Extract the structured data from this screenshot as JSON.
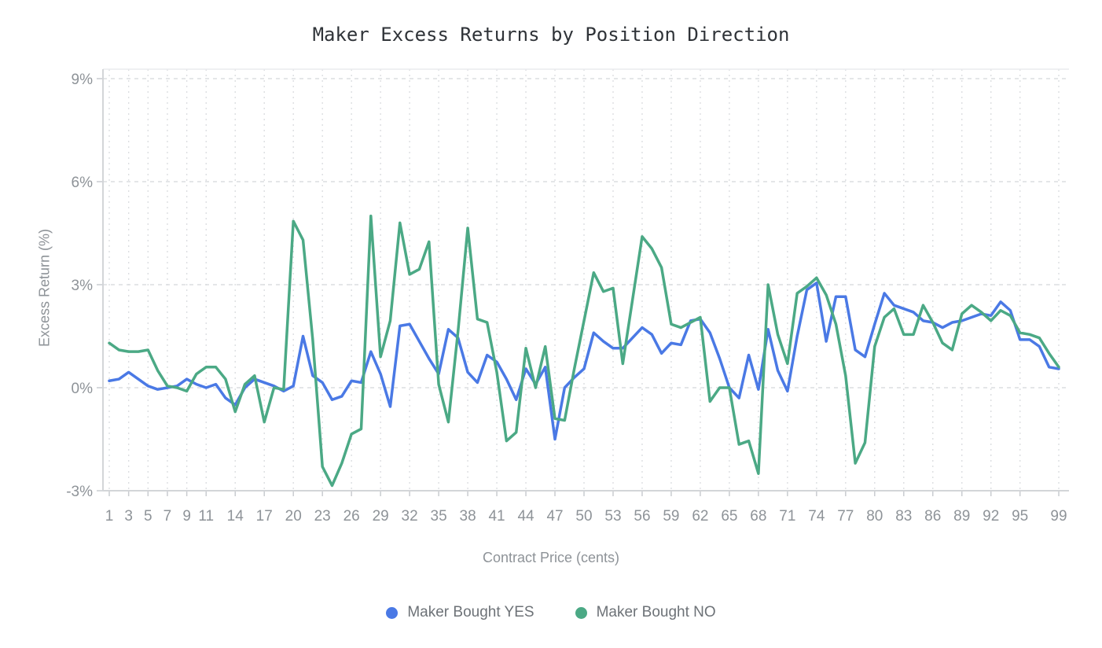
{
  "chart_data": {
    "type": "line",
    "title": "Maker Excess Returns by Position Direction",
    "xlabel": "Contract Price (cents)",
    "ylabel": "Excess Return (%)",
    "xlim": [
      1,
      99
    ],
    "ylim": [
      -3,
      9
    ],
    "grid": true,
    "legend_position": "bottom",
    "x_ticks": [
      1,
      3,
      5,
      7,
      9,
      11,
      14,
      17,
      20,
      23,
      26,
      29,
      32,
      35,
      38,
      41,
      44,
      47,
      50,
      53,
      56,
      59,
      62,
      65,
      68,
      71,
      74,
      77,
      80,
      83,
      86,
      89,
      92,
      95,
      99
    ],
    "y_ticks": [
      {
        "value": 9,
        "label": "9%"
      },
      {
        "value": 6,
        "label": "6%"
      },
      {
        "value": 3,
        "label": "3%"
      },
      {
        "value": 0,
        "label": "0%"
      },
      {
        "value": -3,
        "label": "-3%"
      }
    ],
    "x": [
      1,
      2,
      3,
      4,
      5,
      6,
      7,
      8,
      9,
      10,
      11,
      12,
      13,
      14,
      15,
      16,
      17,
      18,
      19,
      20,
      21,
      22,
      23,
      24,
      25,
      26,
      27,
      28,
      29,
      30,
      31,
      32,
      33,
      34,
      35,
      36,
      37,
      38,
      39,
      40,
      41,
      42,
      43,
      44,
      45,
      46,
      47,
      48,
      49,
      50,
      51,
      52,
      53,
      54,
      55,
      56,
      57,
      58,
      59,
      60,
      61,
      62,
      63,
      64,
      65,
      66,
      67,
      68,
      69,
      70,
      71,
      72,
      73,
      74,
      75,
      76,
      77,
      78,
      79,
      80,
      81,
      82,
      83,
      84,
      85,
      86,
      87,
      88,
      89,
      90,
      91,
      92,
      93,
      94,
      95,
      96,
      97,
      98,
      99
    ],
    "series": [
      {
        "name": "Maker Bought YES",
        "color": "#4a79e5",
        "values": [
          0.2,
          0.25,
          0.45,
          0.25,
          0.05,
          -0.05,
          0,
          0.05,
          0.25,
          0.1,
          0,
          0.1,
          -0.3,
          -0.5,
          0,
          0.25,
          0.15,
          0.05,
          -0.1,
          0.05,
          1.5,
          0.35,
          0.15,
          -0.35,
          -0.25,
          0.2,
          0.15,
          1.05,
          0.4,
          -0.55,
          1.8,
          1.85,
          1.35,
          0.85,
          0.4,
          1.7,
          1.45,
          0.45,
          0.15,
          0.95,
          0.75,
          0.25,
          -0.35,
          0.55,
          0.1,
          0.6,
          -1.5,
          0,
          0.3,
          0.55,
          1.6,
          1.35,
          1.15,
          1.15,
          1.45,
          1.75,
          1.55,
          1,
          1.3,
          1.25,
          1.95,
          2,
          1.6,
          0.85,
          0,
          -0.3,
          0.95,
          -0.05,
          1.7,
          0.5,
          -0.1,
          1.5,
          2.85,
          3.05,
          1.35,
          2.65,
          2.65,
          1.1,
          0.9,
          1.85,
          2.75,
          2.4,
          2.3,
          2.2,
          1.95,
          1.9,
          1.75,
          1.9,
          1.95,
          2.05,
          2.15,
          2.1,
          2.5,
          2.25,
          1.4,
          1.4,
          1.2,
          0.6,
          0.55
        ]
      },
      {
        "name": "Maker Bought NO",
        "color": "#4ba985",
        "values": [
          1.3,
          1.1,
          1.05,
          1.05,
          1.1,
          0.5,
          0.05,
          0,
          -0.1,
          0.4,
          0.6,
          0.6,
          0.25,
          -0.7,
          0.1,
          0.35,
          -1,
          0,
          -0.05,
          4.85,
          4.3,
          1.4,
          -2.3,
          -2.85,
          -2.2,
          -1.35,
          -1.2,
          5,
          0.9,
          1.95,
          4.8,
          3.3,
          3.45,
          4.25,
          0.1,
          -1,
          1.65,
          4.65,
          2,
          1.9,
          0.45,
          -1.55,
          -1.3,
          1.15,
          0,
          1.2,
          -0.9,
          -0.95,
          0.55,
          1.95,
          3.35,
          2.8,
          2.9,
          0.7,
          2.55,
          4.4,
          4.05,
          3.5,
          1.85,
          1.75,
          1.9,
          2.05,
          -0.4,
          0,
          0,
          -1.65,
          -1.55,
          -2.5,
          3,
          1.55,
          0.7,
          2.75,
          2.95,
          3.2,
          2.7,
          1.85,
          0.35,
          -2.2,
          -1.6,
          1.2,
          2.05,
          2.3,
          1.55,
          1.55,
          2.4,
          1.9,
          1.3,
          1.1,
          2.15,
          2.4,
          2.2,
          1.95,
          2.25,
          2.1,
          1.6,
          1.55,
          1.45,
          1,
          0.6
        ]
      }
    ],
    "style": {
      "grid_color": "#dcdee1",
      "axis_color": "#d3d5d8",
      "tick_color": "#c9ccd0",
      "tick_label_color": "#8e9398",
      "line_width": 3.5
    }
  }
}
